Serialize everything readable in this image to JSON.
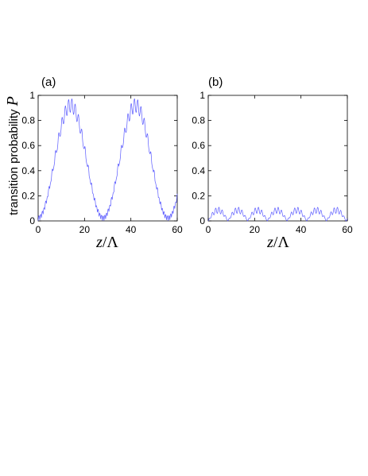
{
  "chart_data": [
    {
      "type": "line",
      "panel_label": "(a)",
      "ylabel_text": "transition probability ",
      "ylabel_var": "P",
      "xlabel_var": "z",
      "xlabel_rest": "/Λ",
      "xlim": [
        0,
        60
      ],
      "ylim": [
        0,
        1
      ],
      "xticks": [
        0,
        20,
        40,
        60
      ],
      "yticks": [
        0,
        0.2,
        0.4,
        0.6,
        0.8,
        1
      ],
      "ytick_labels": [
        "0",
        "0.2",
        "0.4",
        "0.6",
        "0.8",
        "1"
      ],
      "grid": false,
      "line_color": "#5a5aff",
      "series": [
        {
          "envelope": "P = sin^2(pi z / 28) with fast oscillation of period ~1.4 and depth ~0.1",
          "x": [
            0,
            3.5,
            7,
            10.5,
            14,
            17.5,
            21,
            24.5,
            28,
            31.5,
            35,
            38.5,
            42,
            45.5,
            49,
            52.5,
            56,
            60
          ],
          "y": [
            0,
            0.15,
            0.5,
            0.85,
            1.0,
            0.85,
            0.5,
            0.15,
            0,
            0.15,
            0.5,
            0.85,
            1.0,
            0.85,
            0.5,
            0.15,
            0,
            0.3
          ]
        }
      ]
    },
    {
      "type": "line",
      "panel_label": "(b)",
      "xlabel_var": "z",
      "xlabel_rest": "/Λ",
      "xlim": [
        0,
        60
      ],
      "ylim": [
        0,
        1
      ],
      "xticks": [
        0,
        20,
        40,
        60
      ],
      "yticks": [
        0,
        0.2,
        0.4,
        0.6,
        0.8,
        1
      ],
      "ytick_labels": [
        "0",
        "0.2",
        "0.4",
        "0.6",
        "0.8",
        "1"
      ],
      "grid": false,
      "line_color": "#5a5aff",
      "series": [
        {
          "envelope": "small oscillations, max ~0.11, arches of period ~8.5 with fast ripple of period ~1.4",
          "x": [
            0,
            2.1,
            4.2,
            6.4,
            8.5,
            10.6,
            12.7,
            14.9,
            17,
            19.1,
            21.2,
            23.4,
            25.5,
            27.6,
            29.7,
            31.9,
            34,
            36.1,
            38.2,
            40.4,
            42.5,
            44.6,
            46.7,
            48.9,
            51,
            53.1,
            55.2,
            57.4,
            59.5,
            60
          ],
          "y": [
            0,
            0.08,
            0.11,
            0.08,
            0,
            0.08,
            0.11,
            0.08,
            0,
            0.08,
            0.11,
            0.08,
            0,
            0.08,
            0.11,
            0.08,
            0,
            0.08,
            0.11,
            0.08,
            0,
            0.08,
            0.11,
            0.08,
            0,
            0.08,
            0.11,
            0.08,
            0,
            0.02
          ]
        }
      ]
    }
  ]
}
